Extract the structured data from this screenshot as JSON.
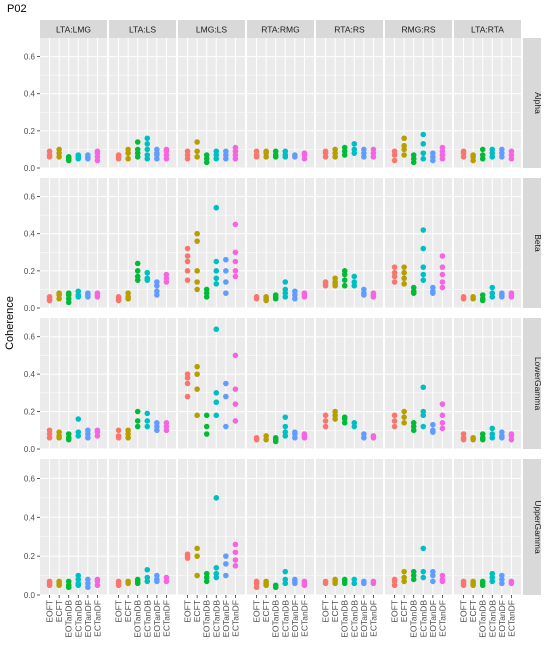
{
  "chart_data": {
    "type": "scatter",
    "title": "P02",
    "ylabel": "Coherence",
    "xlabel": "",
    "ylim": [
      0,
      0.7
    ],
    "yticks": [
      0.0,
      0.2,
      0.4,
      0.6
    ],
    "ytick_labels": [
      "0.0",
      "0.2",
      "0.4",
      "0.6"
    ],
    "grid": true,
    "legend": "none",
    "columns": [
      "LTA:LMG",
      "LTA:LS",
      "LMG:LS",
      "RTA:RMG",
      "RTA:RS",
      "RMG:RS",
      "LTA:RTA"
    ],
    "rows": [
      "Alpha",
      "Beta",
      "LowerGamma",
      "UpperGamma"
    ],
    "categories": [
      "EOFT",
      "ECFT",
      "EOTanDB",
      "ECTanDB",
      "EOTanDF",
      "ECTanDF"
    ],
    "colors": [
      "#F8766D",
      "#B79F00",
      "#00BA38",
      "#00BFC4",
      "#619CFF",
      "#F564E3"
    ],
    "panels": [
      [
        [
          [
            0.06,
            0.07,
            0.09
          ],
          [
            0.06,
            0.08,
            0.1
          ],
          [
            0.04,
            0.05,
            0.06
          ],
          [
            0.05,
            0.06,
            0.07
          ],
          [
            0.05,
            0.06,
            0.07
          ],
          [
            0.04,
            0.06,
            0.08,
            0.09
          ]
        ],
        [
          [
            0.05,
            0.06,
            0.07
          ],
          [
            0.05,
            0.08,
            0.1
          ],
          [
            0.06,
            0.08,
            0.1,
            0.14
          ],
          [
            0.05,
            0.07,
            0.1,
            0.13,
            0.16
          ],
          [
            0.05,
            0.07,
            0.08,
            0.1
          ],
          [
            0.05,
            0.07,
            0.09,
            0.1
          ]
        ],
        [
          [
            0.05,
            0.07,
            0.09
          ],
          [
            0.06,
            0.09,
            0.14
          ],
          [
            0.03,
            0.05,
            0.07
          ],
          [
            0.05,
            0.07,
            0.09
          ],
          [
            0.05,
            0.07,
            0.09
          ],
          [
            0.05,
            0.07,
            0.09,
            0.11
          ]
        ],
        [
          [
            0.06,
            0.07,
            0.09
          ],
          [
            0.06,
            0.08,
            0.09
          ],
          [
            0.06,
            0.07,
            0.09
          ],
          [
            0.06,
            0.07,
            0.09
          ],
          [
            0.06,
            0.07
          ],
          [
            0.05,
            0.07,
            0.08
          ]
        ],
        [
          [
            0.06,
            0.08,
            0.09
          ],
          [
            0.06,
            0.08,
            0.1
          ],
          [
            0.07,
            0.09,
            0.11
          ],
          [
            0.08,
            0.1,
            0.13
          ],
          [
            0.06,
            0.08,
            0.1
          ],
          [
            0.06,
            0.08,
            0.1
          ]
        ],
        [
          [
            0.04,
            0.07,
            0.09
          ],
          [
            0.07,
            0.1,
            0.12,
            0.16
          ],
          [
            0.03,
            0.05,
            0.07
          ],
          [
            0.05,
            0.08,
            0.13,
            0.18
          ],
          [
            0.04,
            0.06,
            0.08
          ],
          [
            0.05,
            0.07,
            0.09,
            0.11
          ]
        ],
        [
          [
            0.06,
            0.08,
            0.09
          ],
          [
            0.04,
            0.06,
            0.07
          ],
          [
            0.05,
            0.07,
            0.1
          ],
          [
            0.06,
            0.08,
            0.1
          ],
          [
            0.06,
            0.08,
            0.1
          ],
          [
            0.05,
            0.07,
            0.09
          ]
        ]
      ],
      [
        [
          [
            0.04,
            0.05,
            0.06
          ],
          [
            0.05,
            0.07,
            0.08
          ],
          [
            0.03,
            0.05,
            0.07,
            0.08
          ],
          [
            0.06,
            0.07,
            0.09
          ],
          [
            0.06,
            0.07,
            0.08
          ],
          [
            0.06,
            0.07,
            0.08
          ]
        ],
        [
          [
            0.04,
            0.05,
            0.06
          ],
          [
            0.05,
            0.06,
            0.08
          ],
          [
            0.15,
            0.17,
            0.2,
            0.24
          ],
          [
            0.15,
            0.16,
            0.19
          ],
          [
            0.07,
            0.09,
            0.12,
            0.14
          ],
          [
            0.14,
            0.16,
            0.18
          ]
        ],
        [
          [
            0.15,
            0.2,
            0.25,
            0.28,
            0.32
          ],
          [
            0.1,
            0.14,
            0.2,
            0.36,
            0.4
          ],
          [
            0.06,
            0.08,
            0.1
          ],
          [
            0.13,
            0.16,
            0.2,
            0.25,
            0.54
          ],
          [
            0.08,
            0.14,
            0.2,
            0.26
          ],
          [
            0.17,
            0.2,
            0.25,
            0.3,
            0.45
          ]
        ],
        [
          [
            0.05,
            0.06
          ],
          [
            0.04,
            0.05,
            0.06
          ],
          [
            0.05,
            0.06,
            0.07
          ],
          [
            0.06,
            0.08,
            0.1,
            0.14
          ],
          [
            0.05,
            0.07,
            0.09
          ],
          [
            0.06,
            0.07,
            0.08
          ]
        ],
        [
          [
            0.12,
            0.13,
            0.14
          ],
          [
            0.12,
            0.13,
            0.14,
            0.16
          ],
          [
            0.12,
            0.15,
            0.18,
            0.2
          ],
          [
            0.12,
            0.14,
            0.17
          ],
          [
            0.07,
            0.08,
            0.1
          ],
          [
            0.06,
            0.07,
            0.08
          ]
        ],
        [
          [
            0.14,
            0.17,
            0.19,
            0.22
          ],
          [
            0.13,
            0.16,
            0.19,
            0.22
          ],
          [
            0.08,
            0.09,
            0.11
          ],
          [
            0.15,
            0.18,
            0.22,
            0.32,
            0.42
          ],
          [
            0.08,
            0.09,
            0.11
          ],
          [
            0.11,
            0.14,
            0.18,
            0.22,
            0.28
          ]
        ],
        [
          [
            0.05,
            0.06
          ],
          [
            0.05,
            0.06
          ],
          [
            0.04,
            0.05,
            0.07
          ],
          [
            0.06,
            0.08,
            0.11
          ],
          [
            0.06,
            0.07,
            0.08
          ],
          [
            0.06,
            0.07,
            0.08
          ]
        ]
      ],
      [
        [
          [
            0.06,
            0.08,
            0.1
          ],
          [
            0.06,
            0.07,
            0.09
          ],
          [
            0.05,
            0.06,
            0.08
          ],
          [
            0.07,
            0.09,
            0.16
          ],
          [
            0.06,
            0.08,
            0.1
          ],
          [
            0.07,
            0.09,
            0.1
          ]
        ],
        [
          [
            0.06,
            0.07,
            0.1
          ],
          [
            0.06,
            0.08,
            0.1
          ],
          [
            0.12,
            0.15,
            0.2
          ],
          [
            0.12,
            0.15,
            0.19
          ],
          [
            0.1,
            0.12,
            0.14
          ],
          [
            0.1,
            0.12,
            0.14
          ]
        ],
        [
          [
            0.28,
            0.35,
            0.38,
            0.4
          ],
          [
            0.18,
            0.32,
            0.4,
            0.44
          ],
          [
            0.08,
            0.12,
            0.18
          ],
          [
            0.18,
            0.25,
            0.3,
            0.64
          ],
          [
            0.12,
            0.28,
            0.35
          ],
          [
            0.15,
            0.24,
            0.32,
            0.5
          ]
        ],
        [
          [
            0.05,
            0.06
          ],
          [
            0.05,
            0.07
          ],
          [
            0.04,
            0.05,
            0.06
          ],
          [
            0.07,
            0.09,
            0.12,
            0.17
          ],
          [
            0.06,
            0.08,
            0.09
          ],
          [
            0.06,
            0.07,
            0.08
          ]
        ],
        [
          [
            0.12,
            0.15,
            0.18
          ],
          [
            0.16,
            0.18,
            0.2
          ],
          [
            0.14,
            0.16,
            0.17
          ],
          [
            0.12,
            0.14
          ],
          [
            0.06,
            0.08
          ],
          [
            0.06,
            0.07
          ]
        ],
        [
          [
            0.12,
            0.15,
            0.18
          ],
          [
            0.14,
            0.17,
            0.2
          ],
          [
            0.1,
            0.12,
            0.14
          ],
          [
            0.12,
            0.18,
            0.2,
            0.33
          ],
          [
            0.09,
            0.1,
            0.13
          ],
          [
            0.11,
            0.14,
            0.18,
            0.24
          ]
        ],
        [
          [
            0.05,
            0.06,
            0.08
          ],
          [
            0.05,
            0.06
          ],
          [
            0.05,
            0.06,
            0.08
          ],
          [
            0.06,
            0.08,
            0.11
          ],
          [
            0.06,
            0.07,
            0.09
          ],
          [
            0.05,
            0.07,
            0.08
          ]
        ]
      ],
      [
        [
          [
            0.05,
            0.06,
            0.07
          ],
          [
            0.05,
            0.06,
            0.07
          ],
          [
            0.04,
            0.05,
            0.07
          ],
          [
            0.05,
            0.06,
            0.08,
            0.1
          ],
          [
            0.04,
            0.06,
            0.08
          ],
          [
            0.05,
            0.07,
            0.08
          ]
        ],
        [
          [
            0.05,
            0.06,
            0.07
          ],
          [
            0.06,
            0.07
          ],
          [
            0.06,
            0.07,
            0.08
          ],
          [
            0.07,
            0.09,
            0.13
          ],
          [
            0.07,
            0.08,
            0.1
          ],
          [
            0.07,
            0.09
          ]
        ],
        [
          [
            0.19,
            0.2,
            0.21
          ],
          [
            0.1,
            0.2,
            0.24
          ],
          [
            0.07,
            0.09,
            0.11
          ],
          [
            0.09,
            0.11,
            0.14,
            0.5
          ],
          [
            0.1,
            0.16,
            0.2
          ],
          [
            0.15,
            0.18,
            0.22,
            0.26
          ]
        ],
        [
          [
            0.04,
            0.06,
            0.07
          ],
          [
            0.05,
            0.06,
            0.07
          ],
          [
            0.04,
            0.05
          ],
          [
            0.06,
            0.08,
            0.12
          ],
          [
            0.06,
            0.07,
            0.08
          ],
          [
            0.05,
            0.06,
            0.07
          ]
        ],
        [
          [
            0.06,
            0.07
          ],
          [
            0.06,
            0.07,
            0.08
          ],
          [
            0.06,
            0.07,
            0.08
          ],
          [
            0.06,
            0.08
          ],
          [
            0.06,
            0.07
          ],
          [
            0.06,
            0.07
          ]
        ],
        [
          [
            0.05,
            0.07,
            0.08
          ],
          [
            0.07,
            0.09,
            0.12
          ],
          [
            0.08,
            0.1,
            0.12
          ],
          [
            0.09,
            0.12,
            0.24
          ],
          [
            0.07,
            0.1,
            0.12
          ],
          [
            0.07,
            0.08,
            0.1
          ]
        ],
        [
          [
            0.05,
            0.06,
            0.07
          ],
          [
            0.05,
            0.06,
            0.07
          ],
          [
            0.05,
            0.06,
            0.07
          ],
          [
            0.07,
            0.09,
            0.11
          ],
          [
            0.06,
            0.08,
            0.1
          ],
          [
            0.06,
            0.07
          ]
        ]
      ]
    ]
  }
}
